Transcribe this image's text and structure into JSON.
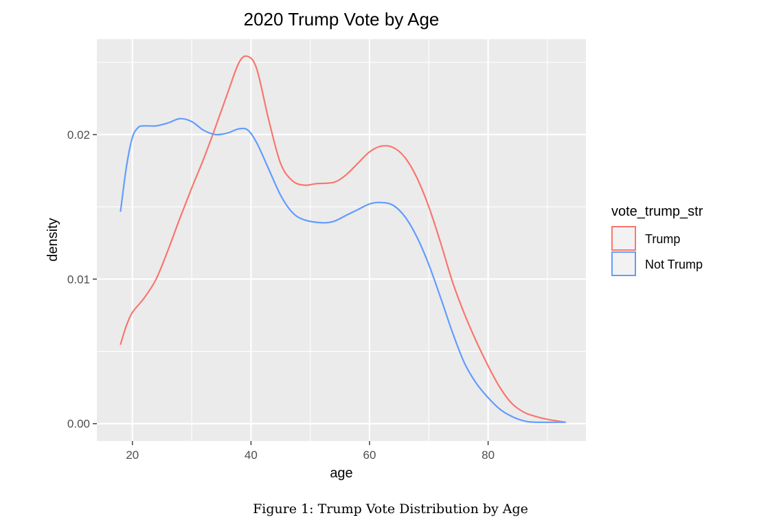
{
  "chart_data": {
    "type": "line",
    "title": "2020 Trump Vote by Age",
    "xlabel": "age",
    "ylabel": "density",
    "xlim": [
      14,
      96.5
    ],
    "ylim": [
      -0.0012,
      0.0266
    ],
    "x_ticks": [
      20,
      40,
      60,
      80
    ],
    "x_tick_labels": [
      "20",
      "40",
      "60",
      "80"
    ],
    "y_ticks": [
      0.0,
      0.01,
      0.02
    ],
    "y_tick_labels": [
      "0.00",
      "0.01",
      "0.02"
    ],
    "grid": true,
    "legend": {
      "title": "vote_trump_str",
      "placement": "right"
    },
    "series": [
      {
        "name": "Trump",
        "color": "#F8766D",
        "points": [
          [
            18,
            0.0055
          ],
          [
            19,
            0.0068
          ],
          [
            20,
            0.0077
          ],
          [
            22,
            0.0087
          ],
          [
            24,
            0.01
          ],
          [
            26,
            0.012
          ],
          [
            28,
            0.0142
          ],
          [
            30,
            0.0163
          ],
          [
            32,
            0.0183
          ],
          [
            34,
            0.0205
          ],
          [
            36,
            0.0228
          ],
          [
            38,
            0.025
          ],
          [
            39.5,
            0.0254
          ],
          [
            41,
            0.0245
          ],
          [
            43,
            0.021
          ],
          [
            45,
            0.018
          ],
          [
            47,
            0.0168
          ],
          [
            49,
            0.0165
          ],
          [
            51,
            0.0166
          ],
          [
            54,
            0.0167
          ],
          [
            56,
            0.0172
          ],
          [
            58,
            0.018
          ],
          [
            60,
            0.0188
          ],
          [
            62,
            0.0192
          ],
          [
            64,
            0.0191
          ],
          [
            66,
            0.0184
          ],
          [
            68,
            0.017
          ],
          [
            70,
            0.015
          ],
          [
            72,
            0.0125
          ],
          [
            74,
            0.0098
          ],
          [
            76,
            0.0076
          ],
          [
            78,
            0.0057
          ],
          [
            80,
            0.004
          ],
          [
            82,
            0.0025
          ],
          [
            84,
            0.0014
          ],
          [
            86,
            0.0008
          ],
          [
            88,
            0.0005
          ],
          [
            90,
            0.0003
          ],
          [
            93,
            0.0001
          ]
        ]
      },
      {
        "name": "Not Trump",
        "color": "#619CFF",
        "points": [
          [
            18,
            0.0147
          ],
          [
            19,
            0.0178
          ],
          [
            20,
            0.0198
          ],
          [
            21,
            0.0205
          ],
          [
            22,
            0.0206
          ],
          [
            24,
            0.0206
          ],
          [
            26,
            0.0208
          ],
          [
            28,
            0.0211
          ],
          [
            30,
            0.0209
          ],
          [
            32,
            0.0203
          ],
          [
            34,
            0.02
          ],
          [
            36,
            0.0201
          ],
          [
            38,
            0.0204
          ],
          [
            39.5,
            0.0203
          ],
          [
            41,
            0.0194
          ],
          [
            43,
            0.0176
          ],
          [
            45,
            0.0158
          ],
          [
            47,
            0.0146
          ],
          [
            49,
            0.0141
          ],
          [
            52,
            0.0139
          ],
          [
            54,
            0.014
          ],
          [
            56,
            0.0144
          ],
          [
            58,
            0.0148
          ],
          [
            60,
            0.0152
          ],
          [
            62,
            0.0153
          ],
          [
            64,
            0.0151
          ],
          [
            66,
            0.0143
          ],
          [
            68,
            0.0129
          ],
          [
            70,
            0.011
          ],
          [
            72,
            0.0087
          ],
          [
            74,
            0.0063
          ],
          [
            76,
            0.0042
          ],
          [
            78,
            0.0028
          ],
          [
            80,
            0.0018
          ],
          [
            82,
            0.001
          ],
          [
            84,
            0.0005
          ],
          [
            86,
            0.0002
          ],
          [
            88,
            0.0001
          ],
          [
            93,
            0.0001
          ]
        ]
      }
    ]
  },
  "caption": "Figure 1: Trump Vote Distribution by Age"
}
